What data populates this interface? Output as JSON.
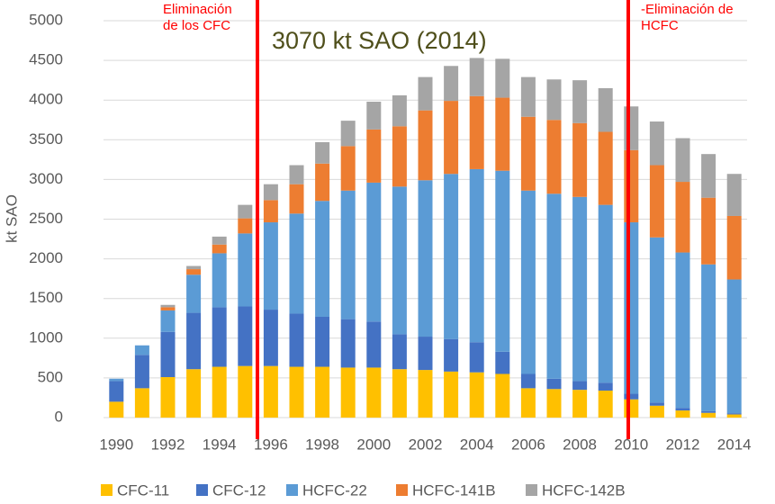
{
  "chart_data": {
    "type": "stacked_bar",
    "y_label": "kt SAO",
    "categories": [
      "1990",
      null,
      "1992",
      null,
      "1994",
      null,
      "1996",
      null,
      "1998",
      null,
      "2000",
      null,
      "2002",
      null,
      "2004",
      null,
      "2006",
      null,
      "2008",
      null,
      "2010",
      null,
      "2012",
      null,
      "2014"
    ],
    "series": [
      {
        "name": "CFC-11",
        "color": "#ffc000",
        "values": [
          200,
          370,
          510,
          610,
          640,
          650,
          650,
          640,
          640,
          630,
          630,
          610,
          600,
          580,
          570,
          550,
          370,
          360,
          350,
          340,
          230,
          150,
          90,
          60,
          40
        ]
      },
      {
        "name": "CFC-12",
        "color": "#4472c4",
        "values": [
          260,
          420,
          570,
          710,
          750,
          750,
          710,
          670,
          630,
          610,
          580,
          440,
          420,
          410,
          380,
          280,
          180,
          130,
          110,
          100,
          70,
          40,
          30,
          20,
          15
        ]
      },
      {
        "name": "HCFC-22",
        "color": "#5b9bd5",
        "values": [
          30,
          120,
          270,
          480,
          680,
          920,
          1100,
          1260,
          1460,
          1620,
          1750,
          1860,
          1970,
          2080,
          2180,
          2280,
          2310,
          2330,
          2320,
          2240,
          2160,
          2080,
          1960,
          1850,
          1685
        ]
      },
      {
        "name": "HCFC-141B",
        "color": "#ed7d31",
        "values": [
          0,
          0,
          40,
          70,
          110,
          190,
          280,
          370,
          470,
          560,
          670,
          760,
          880,
          920,
          920,
          920,
          930,
          930,
          930,
          920,
          910,
          910,
          890,
          840,
          800
        ]
      },
      {
        "name": "HCFC-142B",
        "color": "#a5a5a5",
        "values": [
          0,
          0,
          30,
          40,
          100,
          170,
          200,
          240,
          270,
          320,
          350,
          390,
          420,
          440,
          480,
          490,
          500,
          510,
          540,
          550,
          550,
          550,
          550,
          550,
          530
        ]
      }
    ],
    "ylim": [
      0,
      5000
    ],
    "yticks": [
      0,
      500,
      1000,
      1500,
      2000,
      2500,
      3000,
      3500,
      4000,
      4500,
      5000
    ],
    "grid": true,
    "legend": "bottom",
    "annotations": [
      {
        "lines": [
          "Eliminación",
          "de los CFC"
        ],
        "color": "#ff0000"
      },
      {
        "lines": [
          "3070 kt SAO (2014)"
        ],
        "color": "#4f4f1b"
      },
      {
        "lines": [
          "-Eliminación de",
          "HCFC"
        ],
        "color": "#ff0000"
      }
    ]
  }
}
